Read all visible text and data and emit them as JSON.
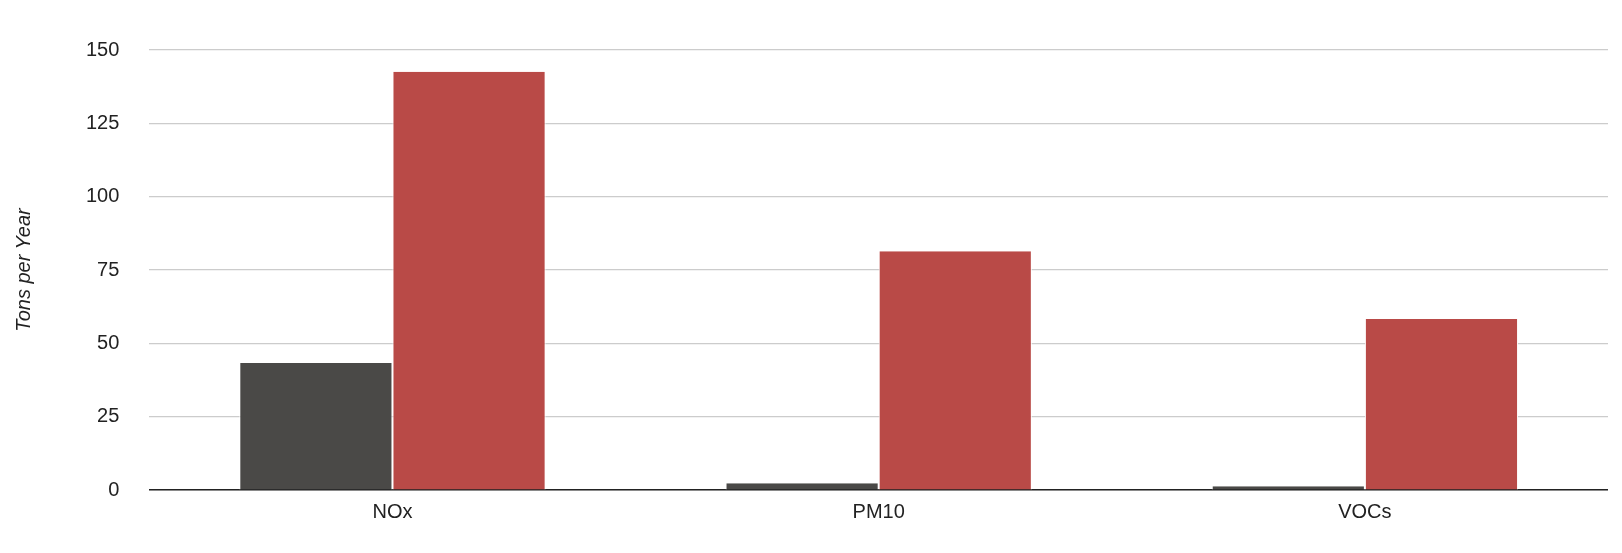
{
  "chart_data": {
    "type": "bar",
    "ylabel": "Tons per Year",
    "categories": [
      "NOx",
      "PM10",
      "VOCs"
    ],
    "series": [
      {
        "color": "#4a4947",
        "values": [
          43.3,
          2.3,
          1.3
        ]
      },
      {
        "color": "#b94a47",
        "values": [
          142.6,
          81.4,
          58.3
        ]
      }
    ],
    "ylim": [
      0,
      150
    ],
    "yticks": [
      0,
      25,
      50,
      75,
      100,
      125,
      150
    ],
    "grid": "y",
    "legend": false
  }
}
